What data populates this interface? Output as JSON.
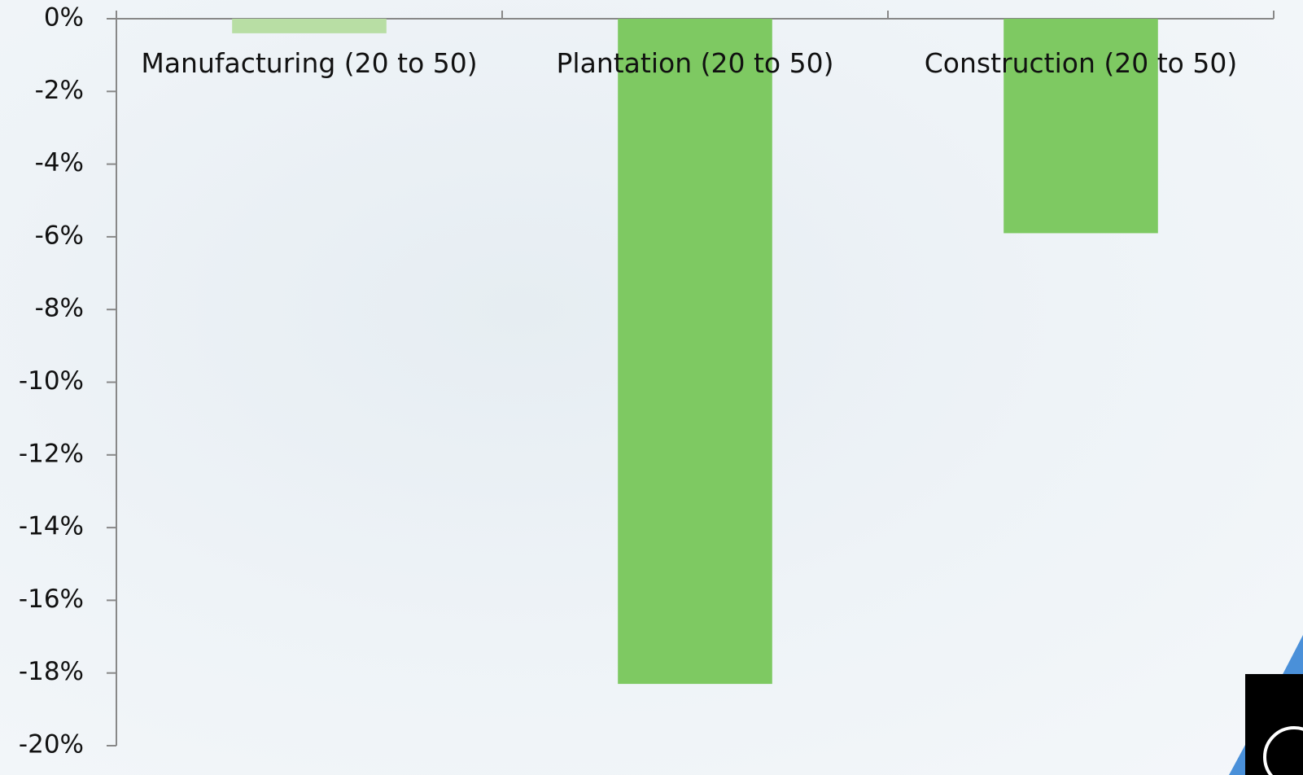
{
  "chart_data": {
    "type": "bar",
    "categories": [
      "Manufacturing (20 to 50)",
      "Plantation (20 to 50)",
      "Construction (20 to 50)"
    ],
    "values": [
      -0.4,
      -18.3,
      -5.9
    ],
    "colors": [
      "#b8dea4",
      "#7ec962",
      "#7ec962"
    ],
    "ylim": [
      -20,
      0
    ],
    "yticks": [
      {
        "value": 0,
        "label": "0%"
      },
      {
        "value": -2,
        "label": "-2%"
      },
      {
        "value": -4,
        "label": "-4%"
      },
      {
        "value": -6,
        "label": "-6%"
      },
      {
        "value": -8,
        "label": "-8%"
      },
      {
        "value": -10,
        "label": "-10%"
      },
      {
        "value": -12,
        "label": "-12%"
      },
      {
        "value": -14,
        "label": "-14%"
      },
      {
        "value": -16,
        "label": "-16%"
      },
      {
        "value": -18,
        "label": "-18%"
      },
      {
        "value": -20,
        "label": "-20%"
      }
    ],
    "grid": false
  }
}
